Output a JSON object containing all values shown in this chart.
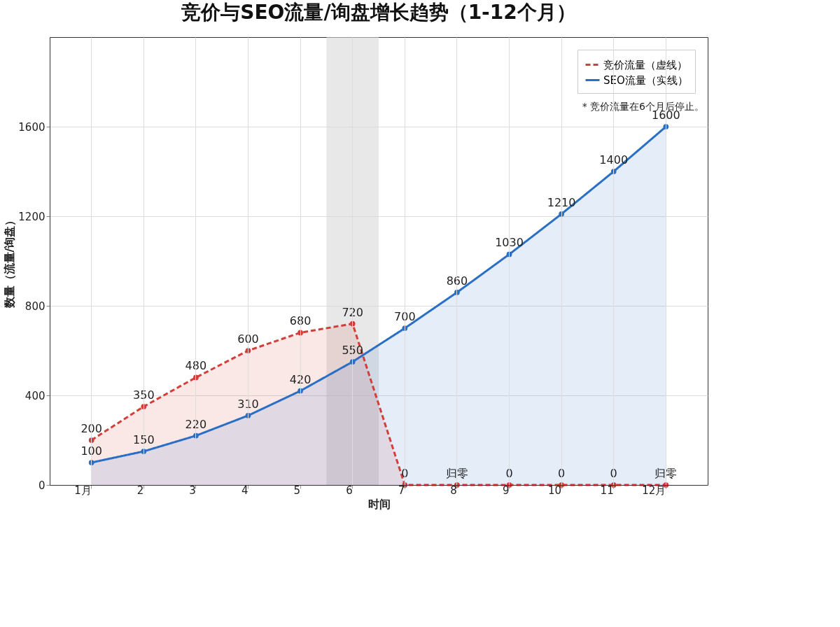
{
  "chart_data": {
    "type": "area",
    "title": "竞价与SEO流量/询盘增长趋势（1-12个月）",
    "xlabel": "时间",
    "ylabel": "数量（流量/询盘）",
    "categories": [
      "1月",
      "2",
      "3",
      "4",
      "5",
      "6",
      "7",
      "8",
      "9",
      "10",
      "11",
      "12月"
    ],
    "series": [
      {
        "name": "竞价流量（虚线）",
        "color": "#d23f3a",
        "line_style": "dashed",
        "values": [
          200,
          350,
          480,
          600,
          680,
          720,
          0,
          0,
          0,
          0,
          0,
          0
        ],
        "value_labels": [
          "200",
          "350",
          "480",
          "600",
          "680",
          "720",
          "0",
          "归零",
          "0",
          "0",
          "0",
          "归零"
        ]
      },
      {
        "name": "SEO流量（实线）",
        "color": "#2a6fc4",
        "line_style": "solid",
        "values": [
          100,
          150,
          220,
          310,
          420,
          550,
          700,
          860,
          1030,
          1210,
          1400,
          1600
        ],
        "value_labels": [
          "100",
          "150",
          "220",
          "310",
          "420",
          "550",
          "700",
          "860",
          "1030",
          "1210",
          "1400",
          "1600"
        ]
      }
    ],
    "ylim": [
      0,
      2000
    ],
    "yticks": [
      0,
      400,
      800,
      1200,
      1600
    ],
    "bands": [
      {
        "axis": "x",
        "from": "6",
        "to": "6",
        "color": "#d9d9d9"
      }
    ],
    "annotations": [
      "* 竞价流量在6个月后停止。"
    ],
    "grid": true,
    "legend": "top right",
    "marker": "circle"
  }
}
